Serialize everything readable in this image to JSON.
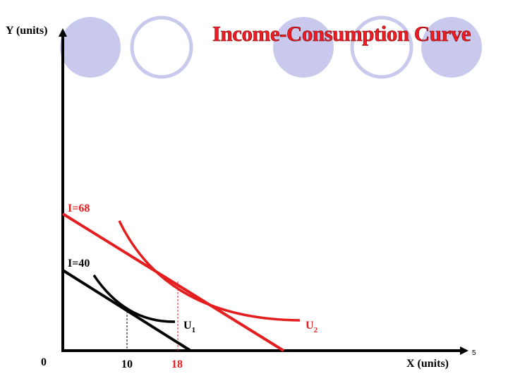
{
  "slide": {
    "title": "Income-Consumption Curve",
    "page_number": "5"
  },
  "colors": {
    "circle_fill": "#c9c9ee",
    "circle_outline": "#c9c9ee",
    "accent": "#e41e1e",
    "axis": "#000000"
  },
  "axes": {
    "y_label": "Y (units)",
    "x_label": "X (units)",
    "origin_label": "0"
  },
  "lines": {
    "budget_68": {
      "label": "I=68"
    },
    "budget_40": {
      "label": "I=40"
    }
  },
  "curves": {
    "u1": {
      "label": "U",
      "subscript": "1"
    },
    "u2": {
      "label": "U",
      "subscript": "2"
    }
  },
  "x_markers": [
    {
      "label": "10",
      "color": "#000000"
    },
    {
      "label": "18",
      "color": "#e41e1e"
    }
  ]
}
